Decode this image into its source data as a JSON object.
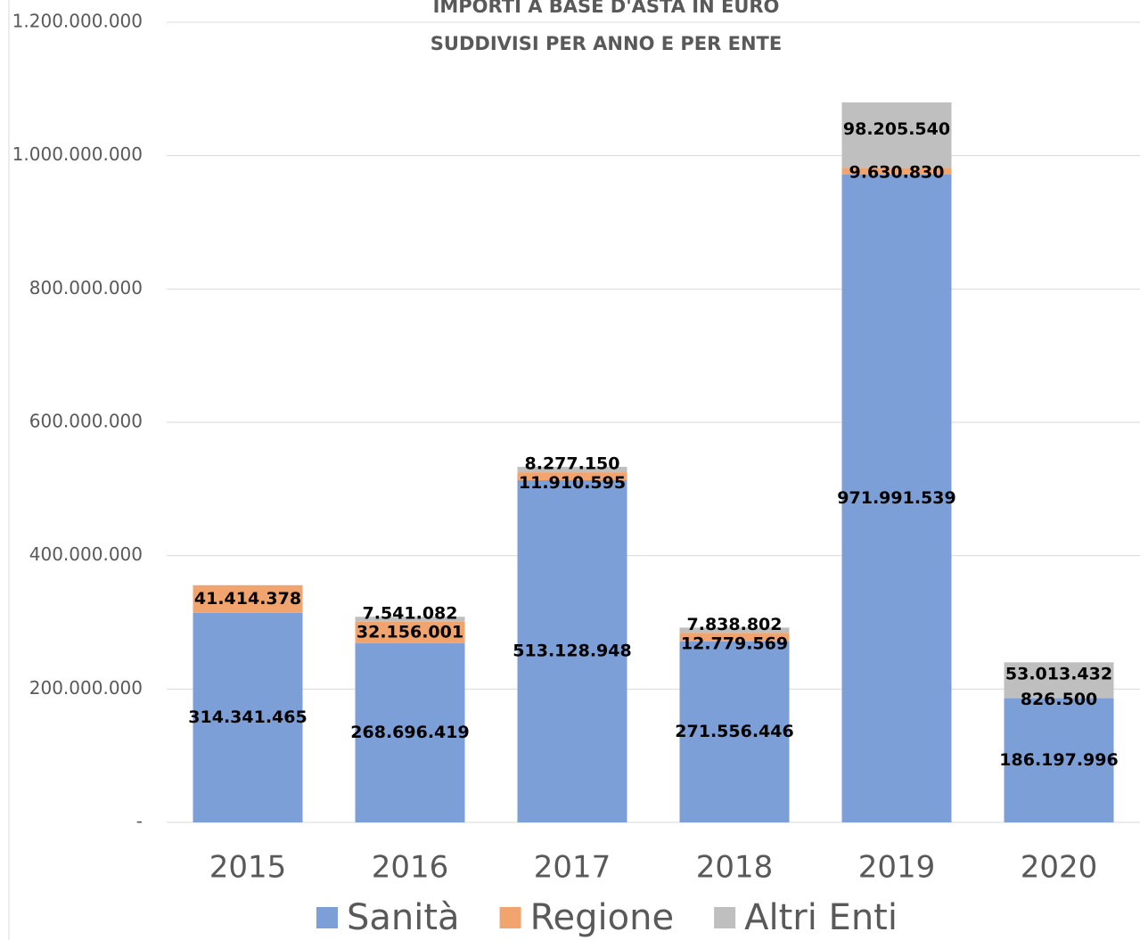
{
  "chart_data": {
    "type": "stacked_bar",
    "title": "IMPORTI A BASE D'ASTA IN EURO",
    "subtitle": "SUDDIVISI PER ANNO E PER ENTE",
    "categories": [
      "2015",
      "2016",
      "2017",
      "2018",
      "2019",
      "2020"
    ],
    "series": [
      {
        "name": "Sanità",
        "color": "#7b9fd6",
        "values": [
          314341465,
          268696419,
          513128948,
          271556446,
          971991539,
          186197996
        ],
        "value_labels": [
          "314.341.465",
          "268.696.419",
          "513.128.948",
          "271.556.446",
          "971.991.539",
          "186.197.996"
        ]
      },
      {
        "name": "Regione",
        "color": "#f2a46e",
        "values": [
          41414378,
          32156001,
          11910595,
          12779569,
          9630830,
          826500
        ],
        "value_labels": [
          "41.414.378",
          "32.156.001",
          "11.910.595",
          "12.779.569",
          "9.630.830",
          "826.500"
        ]
      },
      {
        "name": "Altri Enti",
        "color": "#bfbfbf",
        "values": [
          null,
          7541082,
          8277150,
          7838802,
          98205540,
          53013432
        ],
        "value_labels": [
          null,
          "7.541.082",
          "8.277.150",
          "7.838.802",
          "98.205.540",
          "53.013.432"
        ]
      }
    ],
    "ylim": [
      0,
      1200000000
    ],
    "yticks": [
      {
        "value": 0,
        "label": "-"
      },
      {
        "value": 200000000,
        "label": "200.000.000"
      },
      {
        "value": 400000000,
        "label": "400.000.000"
      },
      {
        "value": 600000000,
        "label": "600.000.000"
      },
      {
        "value": 800000000,
        "label": "800.000.000"
      },
      {
        "value": 1000000000,
        "label": "1.000.000.000"
      },
      {
        "value": 1200000000,
        "label": "1.200.000.000"
      }
    ],
    "grid": true,
    "legend": "bottom"
  }
}
